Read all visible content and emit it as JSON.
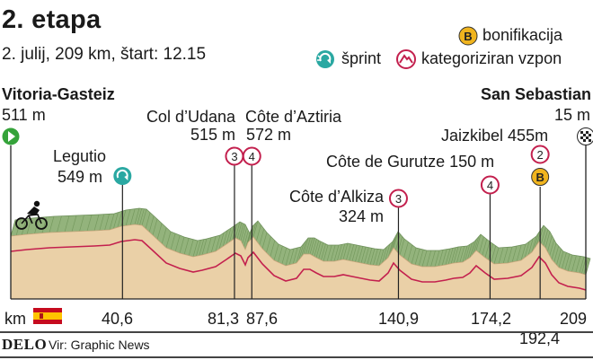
{
  "header": {
    "title": "2. etapa",
    "subtitle": "2. julij, 209 km, štart: 12.15"
  },
  "legend": {
    "bonus_symbol": "B",
    "bonus_label": "bonifikacija",
    "sprint_label": "šprint",
    "climb_label": "kategoriziran vzpon"
  },
  "start": {
    "name": "Vitoria-Gasteiz",
    "elevation": "511 m"
  },
  "finish": {
    "name": "San Sebastian",
    "elevation": "15 m"
  },
  "km_label": "km",
  "footer": {
    "brand": "DELO",
    "source": "Vir: Graphic News"
  },
  "colors": {
    "sprint": "#2aa8a2",
    "climb": "#c3204e",
    "bonus": "#f0b41e",
    "profile_fill": "#ead0a7",
    "profile_top": "#7fa36a"
  },
  "chart_data": {
    "type": "area",
    "xlabel": "km",
    "x_range": [
      0,
      209
    ],
    "points": [
      {
        "km": 0,
        "name": "Vitoria-Gasteiz",
        "elevation": "511 m",
        "type": "start"
      },
      {
        "km": 40.6,
        "name": "Legutio",
        "elevation": "549 m",
        "type": "sprint",
        "tick": "40,6"
      },
      {
        "km": 81.3,
        "name": "Col d’Udana",
        "elevation": "515 m",
        "type": "climb",
        "category": "3",
        "tick": "81,3"
      },
      {
        "km": 87.6,
        "name": "Côte d’Aztiria",
        "elevation": "572 m",
        "type": "climb",
        "category": "4",
        "tick": "87,6"
      },
      {
        "km": 140.9,
        "name": "Côte d’Alkiza",
        "elevation": "324 m",
        "type": "climb",
        "category": "3",
        "tick": "140,9"
      },
      {
        "km": 174.2,
        "name": "Côte de Gurutze",
        "elevation": "150 m",
        "type": "climb",
        "category": "4",
        "tick": "174,2"
      },
      {
        "km": 192.4,
        "name": "Jaizkibel",
        "elevation": "455m",
        "type": "climb",
        "category": "2",
        "bonus": true,
        "tick": "192,4"
      },
      {
        "km": 209,
        "name": "San Sebastian",
        "elevation": "15 m",
        "type": "finish",
        "tick": "209"
      }
    ]
  }
}
